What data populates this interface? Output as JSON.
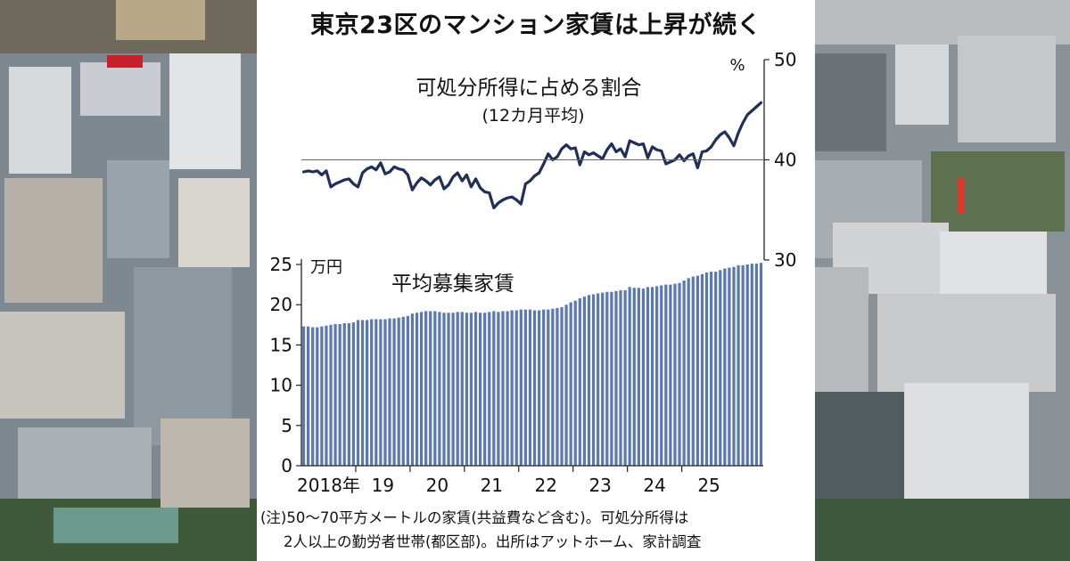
{
  "headline": "東京23区のマンション家賃は上昇が続く",
  "colors": {
    "line": "#1f2f57",
    "bar": "#5b78b4",
    "axis": "#222222",
    "grid": "#666666"
  },
  "notes": {
    "line1": "(注)50〜70平方メートルの家賃(共益費など含む)。可処分所得は",
    "line2": "2人以上の勤労者世帯(都区部)。出所はアットホーム、家計調査"
  },
  "chart_data": [
    {
      "type": "line",
      "title": "可処分所得に占める割合",
      "subtitle": "(12カ月平均)",
      "unit": "%",
      "ylim": [
        30,
        50
      ],
      "yticks": [
        30,
        40,
        50
      ],
      "grid": "40 only",
      "x_start": "2018-01",
      "values": [
        38.8,
        38.9,
        38.8,
        38.9,
        38.5,
        38.9,
        37.3,
        37.6,
        37.8,
        38.0,
        38.1,
        37.6,
        37.3,
        38.7,
        39.1,
        39.3,
        39.0,
        39.7,
        38.6,
        38.8,
        39.3,
        39.1,
        39.0,
        38.5,
        37.0,
        37.7,
        38.2,
        37.9,
        37.5,
        38.0,
        38.3,
        37.1,
        37.5,
        38.3,
        38.7,
        37.9,
        38.5,
        37.3,
        38.1,
        37.2,
        36.8,
        36.7,
        35.2,
        35.7,
        36.0,
        36.2,
        36.3,
        36.0,
        35.6,
        37.6,
        37.9,
        38.4,
        38.7,
        39.6,
        40.6,
        40.0,
        40.3,
        41.1,
        41.5,
        41.1,
        41.2,
        39.5,
        40.8,
        40.5,
        40.7,
        40.4,
        40.1,
        41.0,
        41.6,
        40.8,
        41.1,
        40.3,
        41.9,
        41.7,
        41.5,
        41.6,
        40.2,
        41.3,
        41.0,
        40.9,
        39.6,
        39.8,
        40.0,
        40.5,
        39.9,
        40.4,
        40.6,
        39.2,
        40.8,
        40.9,
        41.3,
        42.0,
        42.5,
        42.8,
        42.2,
        41.4,
        42.7,
        43.7,
        44.5,
        44.9,
        45.3,
        45.7
      ]
    },
    {
      "type": "bar",
      "title": "平均募集家賃",
      "unit": "万円",
      "ylim": [
        0,
        25
      ],
      "yticks": [
        0,
        5,
        10,
        15,
        20,
        25
      ],
      "x_start": "2018-01",
      "x_tick_labels": [
        "2018年",
        "19",
        "20",
        "21",
        "22",
        "23",
        "24",
        "25"
      ],
      "values": [
        17.3,
        17.3,
        17.2,
        17.2,
        17.3,
        17.4,
        17.5,
        17.6,
        17.6,
        17.7,
        17.7,
        17.8,
        18.1,
        18.1,
        18.1,
        18.2,
        18.2,
        18.2,
        18.2,
        18.3,
        18.3,
        18.4,
        18.5,
        18.6,
        18.9,
        19.0,
        19.1,
        19.2,
        19.2,
        19.2,
        19.1,
        19.0,
        19.0,
        19.0,
        19.1,
        19.1,
        19.0,
        19.0,
        19.1,
        19.0,
        19.0,
        19.1,
        19.2,
        19.1,
        19.2,
        19.2,
        19.3,
        19.3,
        19.4,
        19.4,
        19.4,
        19.3,
        19.3,
        19.4,
        19.4,
        19.5,
        19.6,
        19.7,
        20.0,
        20.3,
        20.5,
        20.8,
        21.0,
        21.2,
        21.3,
        21.4,
        21.5,
        21.6,
        21.6,
        21.7,
        21.8,
        21.8,
        22.2,
        22.1,
        22.1,
        22.0,
        22.2,
        22.2,
        22.3,
        22.4,
        22.5,
        22.5,
        22.6,
        22.7,
        23.0,
        23.3,
        23.5,
        23.6,
        23.8,
        24.0,
        24.1,
        24.1,
        24.3,
        24.5,
        24.6,
        24.7,
        24.9,
        24.9,
        25.0,
        25.1,
        25.1,
        25.2
      ]
    }
  ]
}
